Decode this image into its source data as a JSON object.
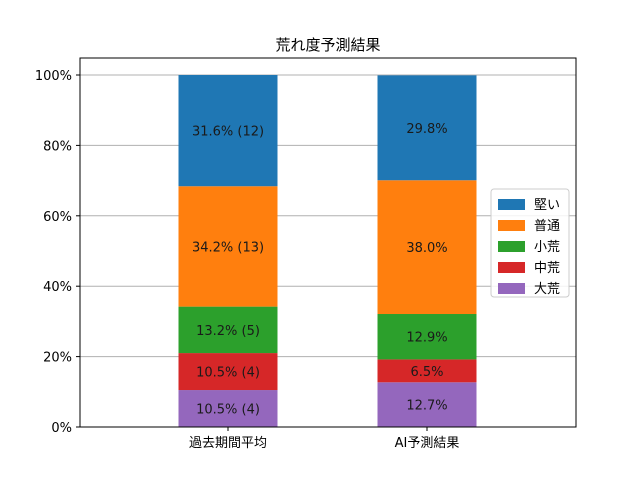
{
  "chart_data": {
    "type": "bar",
    "stacked": true,
    "title": "荒れ度予測結果",
    "xlabel": "",
    "ylabel": "",
    "ylim": [
      0,
      100
    ],
    "yticks": [
      "0%",
      "20%",
      "40%",
      "60%",
      "80%",
      "100%"
    ],
    "grid": "y",
    "legend_position": "right",
    "categories": [
      "過去期間平均",
      "AI予測結果"
    ],
    "series": [
      {
        "name": "大荒",
        "color": "#9467bd",
        "values": [
          10.5,
          12.7
        ],
        "labels": [
          "10.5% (4)",
          "12.7%"
        ]
      },
      {
        "name": "中荒",
        "color": "#d62728",
        "values": [
          10.5,
          6.5
        ],
        "labels": [
          "10.5% (4)",
          "6.5%"
        ]
      },
      {
        "name": "小荒",
        "color": "#2ca02c",
        "values": [
          13.2,
          12.9
        ],
        "labels": [
          "13.2% (5)",
          "12.9%"
        ]
      },
      {
        "name": "普通",
        "color": "#ff7f0e",
        "values": [
          34.2,
          38.0
        ],
        "labels": [
          "34.2% (13)",
          "38.0%"
        ]
      },
      {
        "name": "堅い",
        "color": "#1f77b4",
        "values": [
          31.6,
          29.8
        ],
        "labels": [
          "31.6% (12)",
          "29.8%"
        ]
      }
    ],
    "legend_order": [
      "堅い",
      "普通",
      "小荒",
      "中荒",
      "大荒"
    ]
  }
}
